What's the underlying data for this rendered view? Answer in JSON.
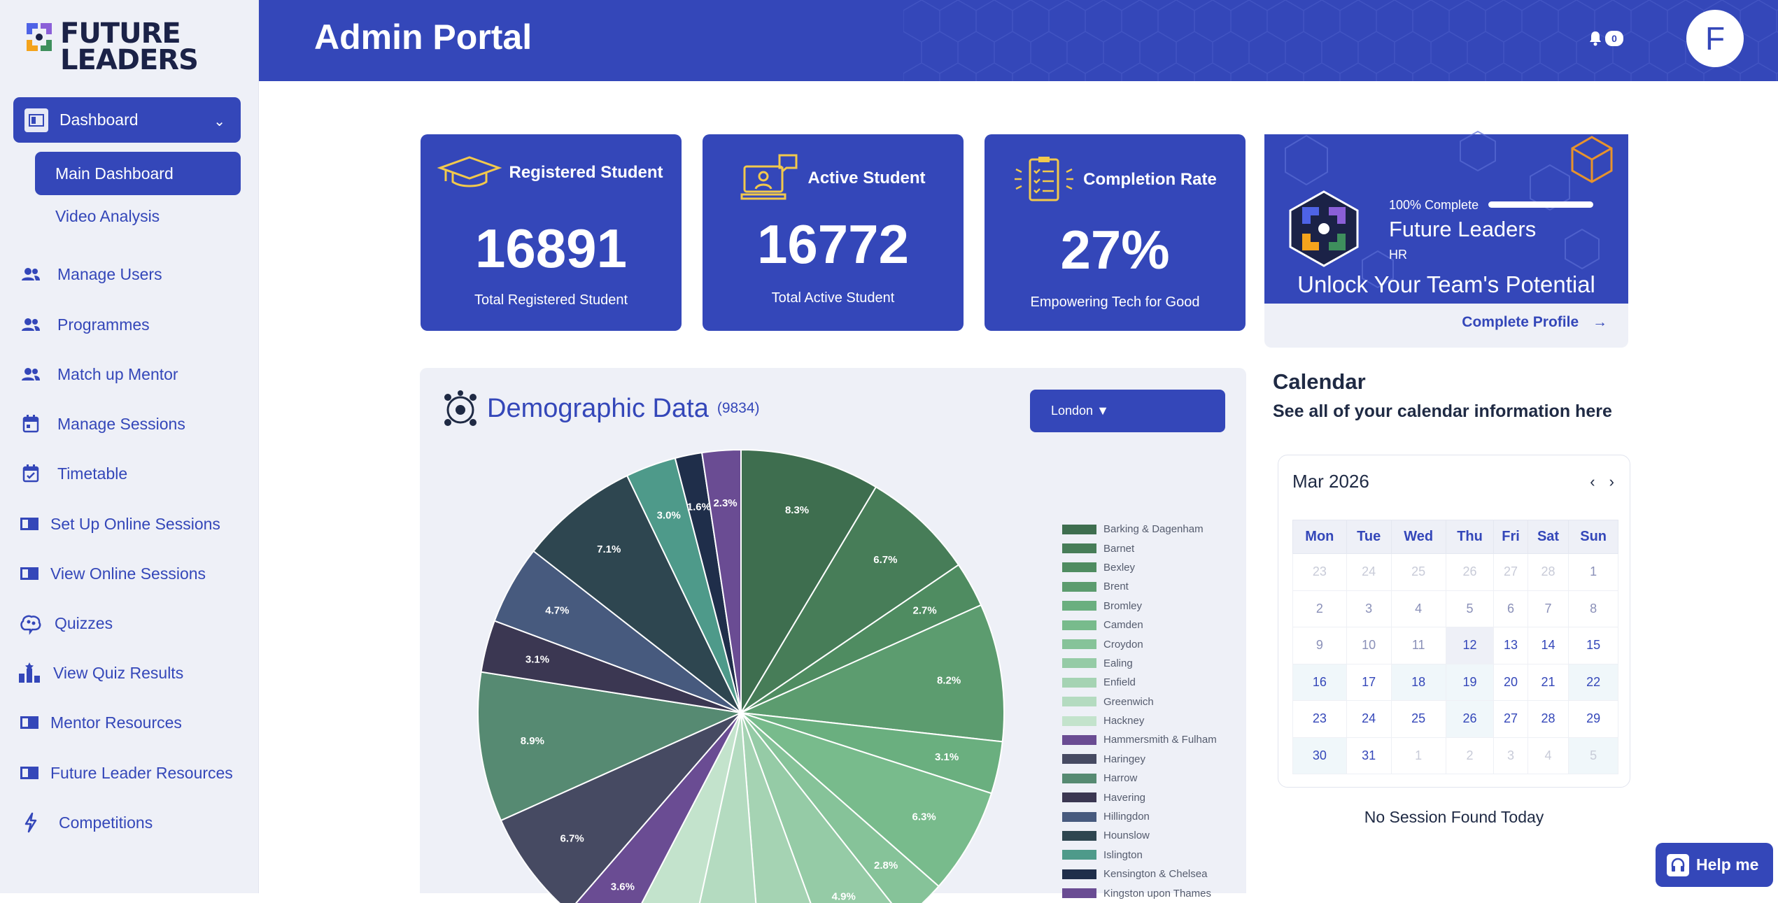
{
  "brand": {
    "line1": "FUTURE",
    "line2": "LEADERS"
  },
  "sidebar": {
    "dashboard": "Dashboard",
    "main_dashboard": "Main Dashboard",
    "video_analysis": "Video Analysis",
    "items": [
      {
        "label": "Manage Users",
        "icon": "users-icon"
      },
      {
        "label": "Programmes",
        "icon": "users-icon"
      },
      {
        "label": "Match up Mentor",
        "icon": "users-icon"
      },
      {
        "label": "Manage Sessions",
        "icon": "calendar-icon"
      },
      {
        "label": "Timetable",
        "icon": "calendar-check-icon"
      },
      {
        "label": "Set Up Online Sessions",
        "icon": "book-icon"
      },
      {
        "label": "View Online Sessions",
        "icon": "book-icon"
      },
      {
        "label": "Quizzes",
        "icon": "brain-icon"
      },
      {
        "label": "View Quiz Results",
        "icon": "podium-icon"
      },
      {
        "label": "Mentor Resources",
        "icon": "book-icon"
      },
      {
        "label": "Future Leader Resources",
        "icon": "book-icon"
      },
      {
        "label": "Competitions",
        "icon": "bolt-icon"
      }
    ]
  },
  "header": {
    "title": "Admin Portal",
    "notifications": "0",
    "avatar_letter": "F"
  },
  "stats": [
    {
      "title": "Registered Student",
      "value": "16891",
      "sub": "Total Registered Student"
    },
    {
      "title": "Active Student",
      "value": "16772",
      "sub": "Total Active Student"
    },
    {
      "title": "Completion Rate",
      "value": "27%",
      "sub": "Empowering Tech for Good"
    }
  ],
  "profile": {
    "complete": "100% Complete",
    "progress": 1.0,
    "name": "Future Leaders",
    "role": "HR",
    "slogan": "Unlock Your Team's Potential",
    "cta": "Complete Profile"
  },
  "demographics": {
    "title": "Demographic Data",
    "count": "(9834)",
    "region": "London ▼"
  },
  "chart_data": {
    "type": "pie",
    "title": "Demographic Data",
    "slices": [
      {
        "label": "Barking & Dagenham",
        "value": 8.3,
        "color": "#3e6e4f"
      },
      {
        "label": "Barnet",
        "value": 6.7,
        "color": "#477d58"
      },
      {
        "label": "Bexley",
        "value": 2.7,
        "color": "#4f8c61"
      },
      {
        "label": "Brent",
        "value": 8.2,
        "color": "#5c9c6f"
      },
      {
        "label": "Bromley",
        "value": 3.1,
        "color": "#6aaf7f"
      },
      {
        "label": "Camden",
        "value": 6.3,
        "color": "#78bb8c"
      },
      {
        "label": "Croydon",
        "value": 2.8,
        "color": "#86c399"
      },
      {
        "label": "Ealing",
        "value": 4.9,
        "color": "#95cba6"
      },
      {
        "label": "Enfield",
        "value": 4.2,
        "color": "#a5d3b3"
      },
      {
        "label": "Greenwich",
        "value": 4.5,
        "color": "#b4dbc0"
      },
      {
        "label": "Hackney",
        "value": 4.1,
        "color": "#c3e3cc"
      },
      {
        "label": "Hammersmith & Fulham",
        "value": 3.6,
        "color": "#6a4c93"
      },
      {
        "label": "Haringey",
        "value": 6.7,
        "color": "#464a62"
      },
      {
        "label": "Harrow",
        "value": 8.9,
        "color": "#568a72"
      },
      {
        "label": "Havering",
        "value": 3.1,
        "color": "#3b3752"
      },
      {
        "label": "Hillingdon",
        "value": 4.7,
        "color": "#475a7e"
      },
      {
        "label": "Hounslow",
        "value": 7.1,
        "color": "#2e4650"
      },
      {
        "label": "Islington",
        "value": 3.0,
        "color": "#4e9a8a"
      },
      {
        "label": "Kensington & Chelsea",
        "value": 1.6,
        "color": "#1f2e4a"
      },
      {
        "label": "Kingston upon Thames",
        "value": 2.3,
        "color": "#6a4c93"
      }
    ]
  },
  "calendar": {
    "title": "Calendar",
    "subtitle": "See all of your calendar information here",
    "month": "Mar 2026",
    "weekdays": [
      "Mon",
      "Tue",
      "Wed",
      "Thu",
      "Fri",
      "Sat",
      "Sun"
    ],
    "weeks": [
      [
        [
          "23",
          "out"
        ],
        [
          "24",
          "out"
        ],
        [
          "25",
          "out"
        ],
        [
          "26",
          "out"
        ],
        [
          "27",
          "out"
        ],
        [
          "28",
          "out"
        ],
        [
          "1",
          "past"
        ]
      ],
      [
        [
          "2",
          "past"
        ],
        [
          "3",
          "past"
        ],
        [
          "4",
          "past"
        ],
        [
          "5",
          "past"
        ],
        [
          "6",
          "past"
        ],
        [
          "7",
          "past"
        ],
        [
          "8",
          "past"
        ]
      ],
      [
        [
          "9",
          "past"
        ],
        [
          "10",
          "past"
        ],
        [
          "11",
          "past"
        ],
        [
          "12",
          "today"
        ],
        [
          "13",
          ""
        ],
        [
          "14",
          ""
        ],
        [
          "15",
          ""
        ]
      ],
      [
        [
          "16",
          "wk"
        ],
        [
          "17",
          ""
        ],
        [
          "18",
          "wk"
        ],
        [
          "19",
          "wk"
        ],
        [
          "20",
          ""
        ],
        [
          "21",
          ""
        ],
        [
          "22",
          "wk"
        ]
      ],
      [
        [
          "23",
          ""
        ],
        [
          "24",
          ""
        ],
        [
          "25",
          ""
        ],
        [
          "26",
          "wk"
        ],
        [
          "27",
          ""
        ],
        [
          "28",
          ""
        ],
        [
          "29",
          ""
        ]
      ],
      [
        [
          "30",
          "wk"
        ],
        [
          "31",
          ""
        ],
        [
          "1",
          "out"
        ],
        [
          "2",
          "out"
        ],
        [
          "3",
          "out"
        ],
        [
          "4",
          "out"
        ],
        [
          "5",
          "outwk"
        ]
      ]
    ],
    "empty": "No Session Found Today"
  },
  "help": {
    "label": "Help me"
  }
}
